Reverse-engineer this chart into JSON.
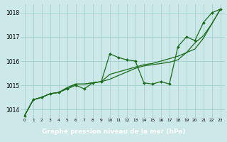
{
  "xlabel": "Graphe pression niveau de la mer (hPa)",
  "bg_color": "#cce8e8",
  "plot_bg_color": "#cce8e8",
  "grid_color": "#99cccc",
  "line_color": "#1a6b1a",
  "marker_color": "#1a6b1a",
  "label_bar_color": "#2a7a2a",
  "label_text_color": "#ffffff",
  "x_ticks": [
    0,
    1,
    2,
    3,
    4,
    5,
    6,
    7,
    8,
    9,
    10,
    11,
    12,
    13,
    14,
    15,
    16,
    17,
    18,
    19,
    20,
    21,
    22,
    23
  ],
  "ylim": [
    1013.65,
    1018.35
  ],
  "y_ticks": [
    1014,
    1015,
    1016,
    1017,
    1018
  ],
  "series": [
    [
      1013.75,
      1014.4,
      1014.5,
      1014.65,
      1014.7,
      1014.85,
      1015.0,
      1014.85,
      1015.1,
      1015.15,
      1016.3,
      1016.15,
      1016.05,
      1016.0,
      1015.1,
      1015.05,
      1015.15,
      1015.05,
      1016.6,
      1017.0,
      1016.85,
      1017.6,
      1018.0,
      1018.15
    ],
    [
      1013.75,
      1014.4,
      1014.5,
      1014.65,
      1014.7,
      1014.9,
      1015.05,
      1015.05,
      1015.1,
      1015.15,
      1015.45,
      1015.55,
      1015.65,
      1015.75,
      1015.85,
      1015.9,
      1016.0,
      1016.1,
      1016.2,
      1016.35,
      1016.5,
      1016.95,
      1017.55,
      1018.15
    ],
    [
      1013.75,
      1014.4,
      1014.5,
      1014.65,
      1014.7,
      1014.9,
      1015.05,
      1015.05,
      1015.1,
      1015.15,
      1015.25,
      1015.4,
      1015.55,
      1015.7,
      1015.8,
      1015.85,
      1015.9,
      1015.95,
      1016.05,
      1016.35,
      1016.75,
      1017.05,
      1017.55,
      1018.15
    ]
  ]
}
